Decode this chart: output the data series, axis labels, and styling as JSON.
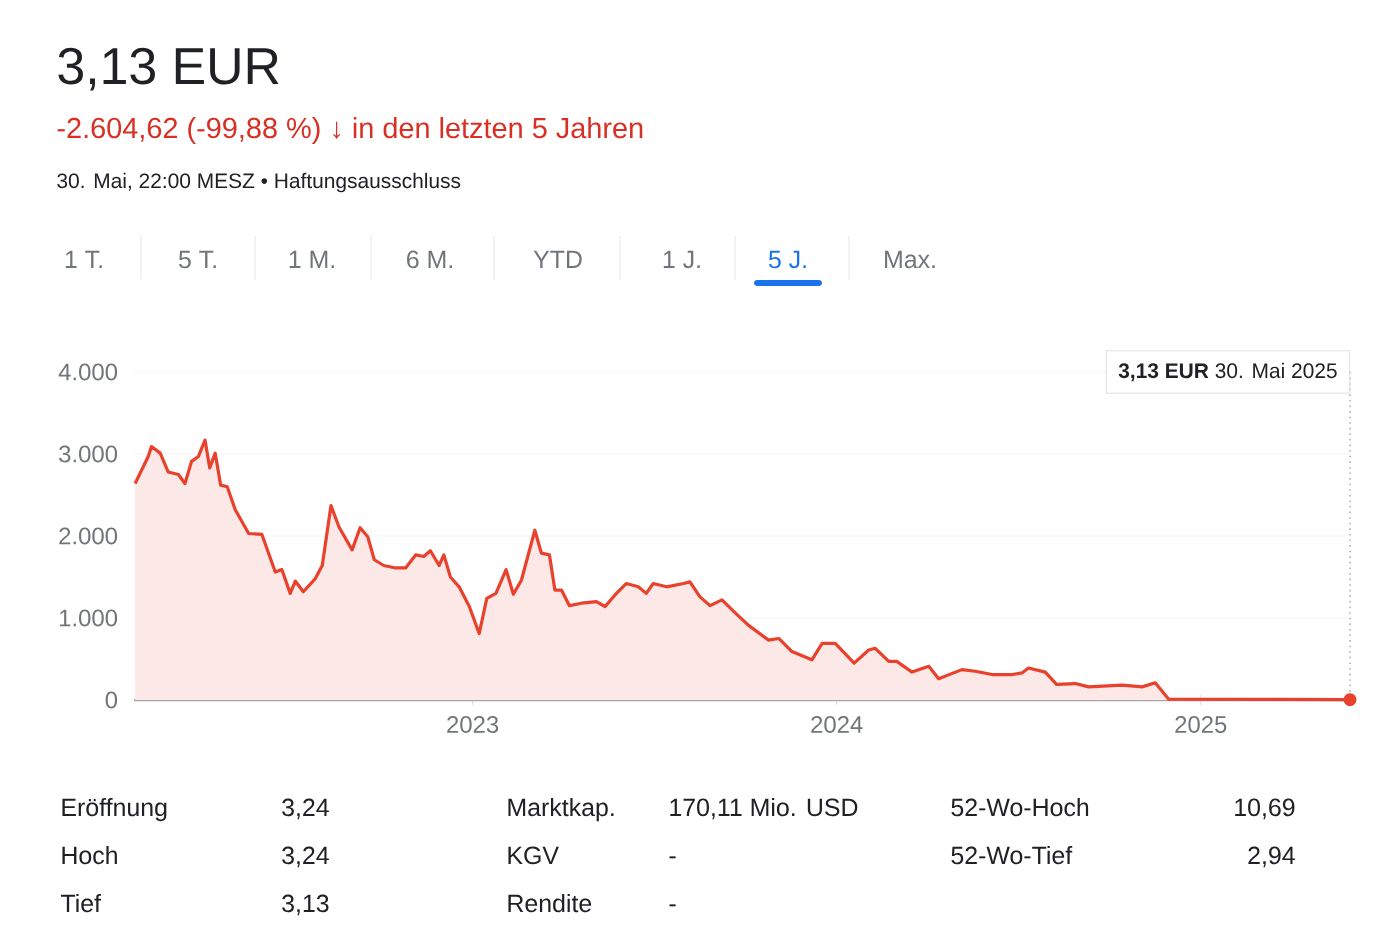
{
  "chart_data": {
    "type": "area",
    "title": "3,13 EUR",
    "subtitle": "-2.604,62 (-99,88 %) ↓ in den letzten 5 Jahren",
    "x": [
      2022.073,
      2022.109,
      2022.118,
      2022.142,
      2022.164,
      2022.192,
      2022.21,
      2022.228,
      2022.247,
      2022.265,
      2022.278,
      2022.293,
      2022.308,
      2022.326,
      2022.348,
      2022.385,
      2022.421,
      2022.458,
      2022.476,
      2022.499,
      2022.513,
      2022.535,
      2022.568,
      2022.587,
      2022.611,
      2022.633,
      2022.669,
      2022.691,
      2022.712,
      2022.73,
      2022.756,
      2022.789,
      2022.816,
      2022.844,
      2022.866,
      2022.884,
      2022.908,
      2022.921,
      2022.939,
      2022.963,
      2022.991,
      2023.018,
      2023.039,
      2023.064,
      2023.092,
      2023.112,
      2023.134,
      2023.171,
      2023.189,
      2023.211,
      2023.226,
      2023.244,
      2023.266,
      2023.299,
      2023.34,
      2023.364,
      2023.395,
      2023.422,
      2023.455,
      2023.477,
      2023.496,
      2023.533,
      2023.579,
      2023.597,
      2023.624,
      2023.652,
      2023.685,
      2023.722,
      2023.758,
      2023.813,
      2023.841,
      2023.877,
      2023.932,
      2023.96,
      2023.996,
      2024.048,
      2024.088,
      2024.106,
      2024.143,
      2024.165,
      2024.207,
      2024.253,
      2024.28,
      2024.344,
      2024.381,
      2024.427,
      2024.482,
      2024.509,
      2024.527,
      2024.573,
      2024.604,
      2024.656,
      2024.692,
      2024.784,
      2024.839,
      2024.875,
      2024.912,
      2025.41
    ],
    "values": [
      2640,
      2970,
      3090,
      3010,
      2780,
      2750,
      2640,
      2910,
      2970,
      3170,
      2830,
      3010,
      2620,
      2600,
      2320,
      2030,
      2020,
      1560,
      1590,
      1300,
      1450,
      1320,
      1480,
      1640,
      2370,
      2110,
      1830,
      2100,
      1990,
      1710,
      1640,
      1610,
      1610,
      1770,
      1750,
      1820,
      1640,
      1770,
      1500,
      1380,
      1140,
      810,
      1240,
      1300,
      1590,
      1290,
      1460,
      2070,
      1790,
      1770,
      1340,
      1340,
      1150,
      1180,
      1200,
      1140,
      1300,
      1420,
      1380,
      1300,
      1420,
      1380,
      1420,
      1440,
      1260,
      1150,
      1220,
      1060,
      910,
      730,
      750,
      590,
      490,
      690,
      690,
      450,
      610,
      630,
      470,
      470,
      340,
      410,
      260,
      370,
      350,
      310,
      310,
      330,
      390,
      340,
      190,
      200,
      160,
      180,
      160,
      210,
      10,
      3.13
    ],
    "color": "#e8412c",
    "xlim": [
      2022.07,
      2025.41
    ],
    "xticks": [
      2023,
      2024,
      2025
    ],
    "ylim": [
      0,
      4000
    ],
    "yticks": [
      {
        "value": 0,
        "label": "0"
      },
      {
        "value": 1000,
        "label": "1.000"
      },
      {
        "value": 2000,
        "label": "2.000"
      },
      {
        "value": 3000,
        "label": "3.000"
      },
      {
        "value": 4000,
        "label": "4.000"
      }
    ],
    "grid": "y",
    "annotations": [
      "30. Mai, 22:00 MESZ • Haftungsausschluss",
      "1 T.",
      "5 T.",
      "1 M.",
      "6 M.",
      "YTD",
      "1 J.",
      "5 J.",
      "Max.",
      "Eröffnung",
      "3,24",
      "Hoch",
      "3,24",
      "Tief",
      "3,13",
      "Marktkap.",
      "170,11 Mio. USD",
      "KGV",
      "-",
      "Rendite",
      "-",
      "52-Wo-Hoch",
      "10,69",
      "52-Wo-Tief",
      "2,94",
      "**3,13 EUR**  30. Mai 2025"
    ]
  }
}
